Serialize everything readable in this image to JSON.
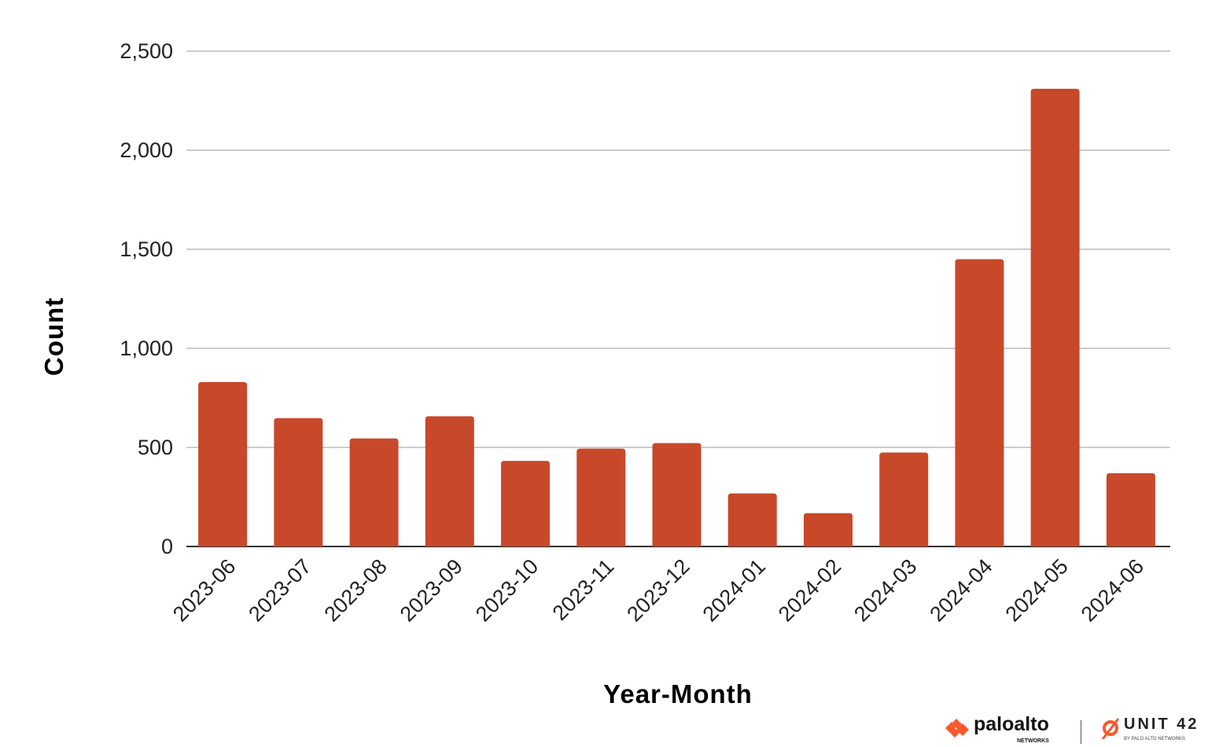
{
  "chart_data": {
    "type": "bar",
    "title": "",
    "xlabel": "Year-Month",
    "ylabel": "Count",
    "ylim": [
      0,
      2500
    ],
    "yticks": [
      0,
      500,
      1000,
      1500,
      2000,
      2500
    ],
    "ytick_labels": [
      "0",
      "500",
      "1,000",
      "1,500",
      "2,000",
      "2,500"
    ],
    "grid": true,
    "bar_color": "#C8482A",
    "categories": [
      "2023-06",
      "2023-07",
      "2023-08",
      "2023-09",
      "2023-10",
      "2023-11",
      "2023-12",
      "2024-01",
      "2024-02",
      "2024-03",
      "2024-04",
      "2024-05",
      "2024-06"
    ],
    "values": [
      830,
      648,
      545,
      657,
      432,
      494,
      522,
      268,
      168,
      474,
      1450,
      2310,
      370
    ]
  },
  "branding": {
    "paloalto": "paloalto",
    "paloalto_sub": "NETWORKS",
    "unit42": "UNIT 42",
    "unit42_sub": "BY PALO ALTO NETWORKS",
    "brand_color": "#FA582D"
  }
}
